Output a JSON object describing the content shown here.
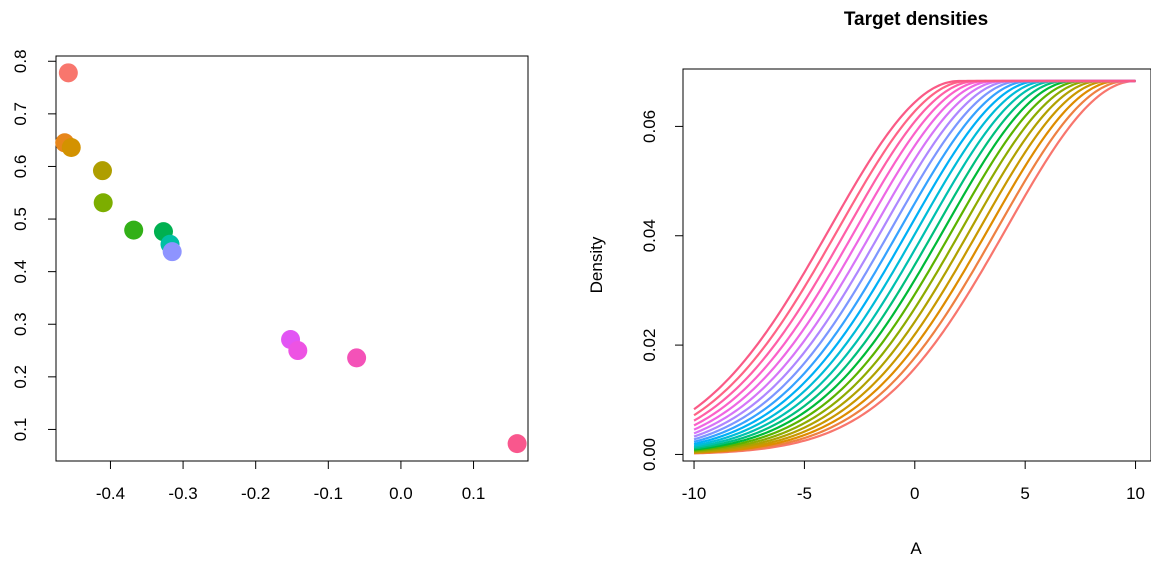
{
  "chart_data": [
    {
      "type": "scatter",
      "title": "",
      "xlabel": "",
      "ylabel": "",
      "xlim": [
        -0.475,
        0.175
      ],
      "ylim": [
        0.04,
        0.81
      ],
      "xticks": [
        -0.4,
        -0.3,
        -0.2,
        -0.1,
        0.0,
        0.1
      ],
      "xtick_labels": [
        "-0.4",
        "-0.3",
        "-0.2",
        "-0.1",
        "0.0",
        "0.1"
      ],
      "yticks": [
        0.1,
        0.2,
        0.3,
        0.4,
        0.5,
        0.6,
        0.7,
        0.8
      ],
      "ytick_labels": [
        "0.1",
        "0.2",
        "0.3",
        "0.4",
        "0.5",
        "0.6",
        "0.7",
        "0.8"
      ],
      "points": [
        {
          "x": -0.458,
          "y": 0.778,
          "color": "#F8766D"
        },
        {
          "x": -0.463,
          "y": 0.645,
          "color": "#E7861B"
        },
        {
          "x": -0.454,
          "y": 0.636,
          "color": "#D39200"
        },
        {
          "x": -0.411,
          "y": 0.592,
          "color": "#AF9E00"
        },
        {
          "x": -0.41,
          "y": 0.531,
          "color": "#7CAE00"
        },
        {
          "x": -0.368,
          "y": 0.479,
          "color": "#32B017"
        },
        {
          "x": -0.327,
          "y": 0.476,
          "color": "#00B050"
        },
        {
          "x": -0.318,
          "y": 0.452,
          "color": "#00BFA4"
        },
        {
          "x": -0.315,
          "y": 0.438,
          "color": "#8E94FF"
        },
        {
          "x": -0.152,
          "y": 0.271,
          "color": "#E254F4"
        },
        {
          "x": -0.142,
          "y": 0.25,
          "color": "#ED53E3"
        },
        {
          "x": -0.061,
          "y": 0.236,
          "color": "#F452B8"
        },
        {
          "x": 0.16,
          "y": 0.073,
          "color": "#F9578D"
        }
      ]
    },
    {
      "type": "line",
      "title": "Target densities",
      "xlabel": "A",
      "ylabel": "Density",
      "xlim": [
        -10.5,
        10.7
      ],
      "ylim": [
        -0.0012,
        0.0705
      ],
      "xticks": [
        -10,
        -5,
        0,
        5,
        10
      ],
      "xtick_labels": [
        "-10",
        "-5",
        "0",
        "5",
        "10"
      ],
      "yticks": [
        0.0,
        0.02,
        0.04,
        0.06
      ],
      "ytick_labels": [
        "0.00",
        "0.02",
        "0.04",
        "0.06"
      ],
      "curve_model": "normal density truncated at mode: sd 5.84, peak 0.0683",
      "x_range": [
        -10,
        10
      ],
      "series": [
        {
          "mean": 10.0,
          "color": "#F8766D"
        },
        {
          "mean": 9.6,
          "color": "#EE8042"
        },
        {
          "mean": 9.2,
          "color": "#DE8C00"
        },
        {
          "mean": 8.8,
          "color": "#C99800"
        },
        {
          "mean": 8.4,
          "color": "#B0A100"
        },
        {
          "mean": 8.0,
          "color": "#8EAB00"
        },
        {
          "mean": 7.6,
          "color": "#5CB300"
        },
        {
          "mean": 7.2,
          "color": "#00BA38"
        },
        {
          "mean": 6.8,
          "color": "#00BF7D"
        },
        {
          "mean": 6.4,
          "color": "#00C0AF"
        },
        {
          "mean": 6.0,
          "color": "#00BCD8"
        },
        {
          "mean": 5.6,
          "color": "#00B0F6"
        },
        {
          "mean": 5.2,
          "color": "#35A2FF"
        },
        {
          "mean": 4.8,
          "color": "#7C96FF"
        },
        {
          "mean": 4.4,
          "color": "#AE87FF"
        },
        {
          "mean": 4.0,
          "color": "#D675F8"
        },
        {
          "mean": 3.6,
          "color": "#EE67E4"
        },
        {
          "mean": 3.2,
          "color": "#FB61C9"
        },
        {
          "mean": 2.8,
          "color": "#FF5FA7"
        },
        {
          "mean": 2.4,
          "color": "#FF6386"
        },
        {
          "mean": 2.0,
          "color": "#FA5A86"
        }
      ]
    }
  ]
}
